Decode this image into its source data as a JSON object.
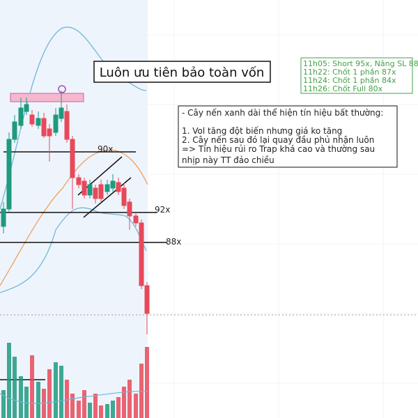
{
  "title": "Luôn ưu tiên bảo toàn vốn",
  "trade_log": [
    "11h05: Short 95x, Nâng SL 88",
    "11h22: Chốt 1 phần 87x",
    "11h24: Chốt 1 phần 84x",
    "11h26: Chốt Full 80x"
  ],
  "note": [
    "- Cây nến xanh dài thể hiện tín hiệu bất thường:",
    "1. Vol tăng đột biến nhưng giá ko tăng",
    "2. Cây nến sau đó lại quay đầu phủ nhận luôn",
    "=> Tín hiệu rủi ro Trap khá cao và thường sau",
    "nhịp này TT đảo chiều"
  ],
  "levels": [
    "90x",
    "92x",
    "88x"
  ]
}
